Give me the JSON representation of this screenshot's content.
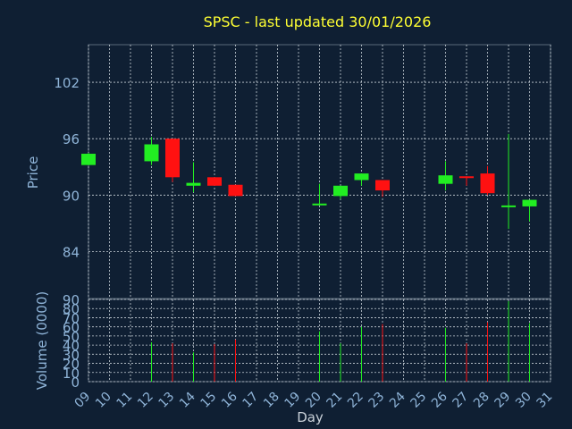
{
  "chart_data": {
    "type": "candlestick",
    "title": "SPSC - last updated 30/01/2026",
    "price_panel": {
      "ylabel": "Price",
      "ylim": [
        79,
        106
      ],
      "yticks": [
        84,
        90,
        96,
        102
      ],
      "grid": true
    },
    "volume_panel": {
      "ylabel": "Volume (0000)",
      "ylim": [
        0,
        90
      ],
      "yticks": [
        0,
        10,
        20,
        30,
        40,
        50,
        60,
        70,
        80,
        90
      ],
      "grid": true
    },
    "xlabel": "Day",
    "x_ticks": [
      "09",
      "10",
      "11",
      "12",
      "13",
      "14",
      "15",
      "16",
      "17",
      "18",
      "19",
      "20",
      "21",
      "22",
      "23",
      "24",
      "25",
      "26",
      "27",
      "28",
      "29",
      "30",
      "31"
    ],
    "candles": [
      {
        "day": 9,
        "open": 93.2,
        "high": 94.5,
        "low": 93.2,
        "close": 94.4,
        "volume": 0
      },
      {
        "day": 12,
        "open": 93.6,
        "high": 96.2,
        "low": 93.2,
        "close": 95.4,
        "volume": 43
      },
      {
        "day": 13,
        "open": 96.0,
        "high": 96.0,
        "low": 91.4,
        "close": 91.9,
        "volume": 42
      },
      {
        "day": 14,
        "open": 91.0,
        "high": 93.5,
        "low": 90.3,
        "close": 91.3,
        "volume": 32
      },
      {
        "day": 15,
        "open": 91.9,
        "high": 91.9,
        "low": 91.0,
        "close": 91.0,
        "volume": 41
      },
      {
        "day": 16,
        "open": 91.1,
        "high": 91.1,
        "low": 89.9,
        "close": 89.9,
        "volume": 46
      },
      {
        "day": 20,
        "open": 89.0,
        "high": 91.2,
        "low": 88.9,
        "close": 89.1,
        "volume": 55
      },
      {
        "day": 21,
        "open": 89.9,
        "high": 91.0,
        "low": 89.6,
        "close": 91.0,
        "volume": 42
      },
      {
        "day": 22,
        "open": 91.6,
        "high": 92.3,
        "low": 91.0,
        "close": 92.3,
        "volume": 60
      },
      {
        "day": 23,
        "open": 91.6,
        "high": 91.6,
        "low": 89.8,
        "close": 90.5,
        "volume": 63
      },
      {
        "day": 26,
        "open": 91.2,
        "high": 93.6,
        "low": 90.5,
        "close": 92.1,
        "volume": 59
      },
      {
        "day": 27,
        "open": 92.0,
        "high": 92.0,
        "low": 91.0,
        "close": 91.9,
        "volume": 42
      },
      {
        "day": 28,
        "open": 92.3,
        "high": 93.1,
        "low": 90.0,
        "close": 90.2,
        "volume": 65
      },
      {
        "day": 29,
        "open": 88.9,
        "high": 96.5,
        "low": 86.4,
        "close": 88.9,
        "volume": 88
      },
      {
        "day": 30,
        "open": 88.8,
        "high": 89.5,
        "low": 87.2,
        "close": 89.5,
        "volume": 64
      }
    ],
    "colors": {
      "background": "#0f1f33",
      "up": "#22ee22",
      "down": "#ff1111",
      "title": "#ffff33",
      "axis_text": "#8fb4d8",
      "grid": "#c8d0d8"
    }
  }
}
